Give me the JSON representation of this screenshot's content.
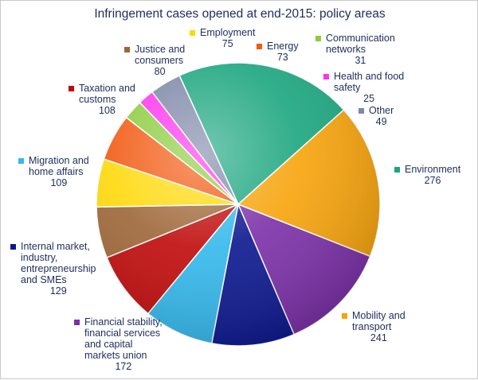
{
  "chart_data": {
    "type": "pie",
    "title": "Infringement cases opened at end-2015: policy areas",
    "slices": [
      {
        "label": "Environment",
        "value": 276,
        "color": "#1aa57e"
      },
      {
        "label": "Mobility and\ntransport",
        "value": 241,
        "color": "#f7a30a"
      },
      {
        "label": "Financial stability,\nfinancial services\nand capital\nmarkets union",
        "value": 172,
        "color": "#7b2fa8"
      },
      {
        "label": "Internal market,\nindustry,\nentrepreneurship\nand SMEs",
        "value": 129,
        "color": "#0b178e"
      },
      {
        "label": "Migration and\nhome affairs",
        "value": 109,
        "color": "#33b8ec"
      },
      {
        "label": "Taxation and\ncustoms",
        "value": 108,
        "color": "#c00a0a"
      },
      {
        "label": "Justice and\nconsumers",
        "value": 80,
        "color": "#9e6637"
      },
      {
        "label": "Employment",
        "value": 75,
        "color": "#ffd90a"
      },
      {
        "label": "Energy",
        "value": 73,
        "color": "#f25a12"
      },
      {
        "label": "Communication\nnetworks",
        "value": 31,
        "color": "#8dcc3f"
      },
      {
        "label": "Health and food\nsafety",
        "value": 25,
        "color": "#ff33f0"
      },
      {
        "label": "Other",
        "value": 49,
        "color": "#7d87a8"
      }
    ]
  }
}
